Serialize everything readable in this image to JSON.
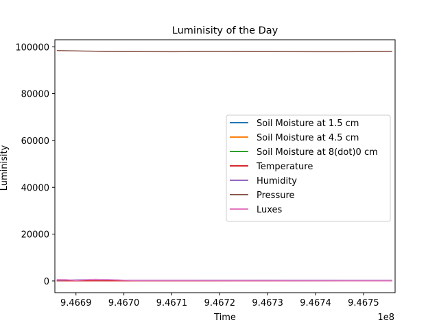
{
  "chart_data": {
    "type": "line",
    "title": "Luminisity of the Day",
    "xlabel": "Time",
    "ylabel": "Luminisity",
    "x_offset_label": "1e8",
    "xlim": [
      946685600,
      946756600
    ],
    "ylim": [
      -5000,
      103000
    ],
    "x_ticks": [
      {
        "value": 946690000,
        "label": "9.4669"
      },
      {
        "value": 946700000,
        "label": "9.4670"
      },
      {
        "value": 946710000,
        "label": "9.4671"
      },
      {
        "value": 946720000,
        "label": "9.4672"
      },
      {
        "value": 946730000,
        "label": "9.4673"
      },
      {
        "value": 946740000,
        "label": "9.4674"
      },
      {
        "value": 946750000,
        "label": "9.4675"
      }
    ],
    "y_ticks": [
      {
        "value": 0,
        "label": "0"
      },
      {
        "value": 20000,
        "label": "20000"
      },
      {
        "value": 40000,
        "label": "40000"
      },
      {
        "value": 60000,
        "label": "60000"
      },
      {
        "value": 80000,
        "label": "80000"
      },
      {
        "value": 100000,
        "label": "100000"
      }
    ],
    "grid": false,
    "legend_position": "center-right",
    "series": [
      {
        "name": "Soil Moisture at 1.5 cm",
        "color": "#1f77b4",
        "x": [
          946686000,
          946756000
        ],
        "y": [
          50,
          50
        ]
      },
      {
        "name": "Soil Moisture at 4.5 cm",
        "color": "#ff7f0e",
        "x": [
          946686000,
          946756000
        ],
        "y": [
          60,
          60
        ]
      },
      {
        "name": "Soil Moisture at 8(dot)0 cm",
        "color": "#2ca02c",
        "x": [
          946686000,
          946756000
        ],
        "y": [
          70,
          70
        ]
      },
      {
        "name": "Temperature",
        "color": "#d62728",
        "x": [
          946686000,
          946756000
        ],
        "y": [
          20,
          20
        ]
      },
      {
        "name": "Humidity",
        "color": "#9467bd",
        "x": [
          946686000,
          946690000,
          946693000,
          946697000,
          946700000,
          946756000
        ],
        "y": [
          300,
          450,
          600,
          550,
          350,
          300
        ]
      },
      {
        "name": "Pressure",
        "color": "#8c564b",
        "x": [
          946686000,
          946690000,
          946696000,
          946702000,
          946710000,
          946718000,
          946730000,
          946740000,
          946750000,
          946756000
        ],
        "y": [
          98400,
          98250,
          98000,
          97950,
          97900,
          98000,
          97950,
          97900,
          97950,
          98000
        ]
      },
      {
        "name": "Luxes",
        "color": "#e377c2",
        "x": [
          946686000,
          946688000,
          946690000,
          946694000,
          946698000,
          946702000,
          946756000
        ],
        "y": [
          600,
          550,
          200,
          700,
          450,
          150,
          100
        ]
      }
    ]
  }
}
